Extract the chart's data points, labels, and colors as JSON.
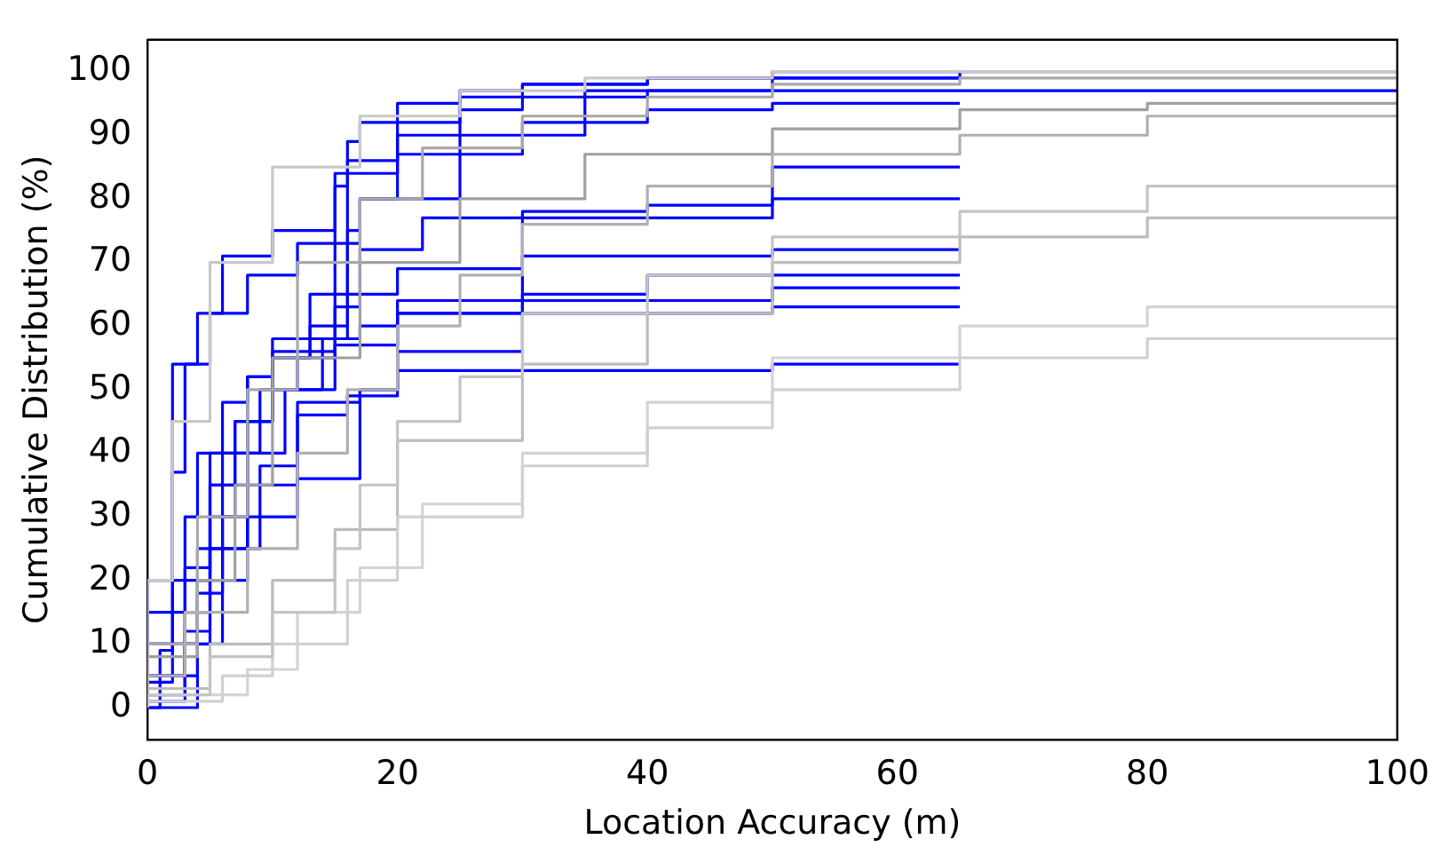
{
  "chart_data": {
    "type": "step",
    "xlabel": "Location Accuracy (m)",
    "ylabel": "Cumulative Distribution (%)",
    "xlim": [
      0,
      100
    ],
    "ylim": [
      -5,
      105
    ],
    "xticks": [
      0,
      20,
      40,
      60,
      80,
      100
    ],
    "yticks": [
      0,
      10,
      20,
      30,
      40,
      50,
      60,
      70,
      80,
      90,
      100
    ],
    "grid": false,
    "legend": false,
    "marker": "none",
    "series": [
      {
        "color": "#c4c4c4",
        "x": [
          0,
          5,
          10,
          15,
          17,
          20,
          25,
          30,
          40,
          50,
          65,
          80,
          100
        ],
        "values": [
          0,
          2,
          8,
          15,
          25,
          35,
          45,
          52,
          62,
          68,
          74,
          78,
          82
        ]
      },
      {
        "color": "#b0b0b0",
        "x": [
          0,
          3,
          8,
          12,
          16,
          20,
          25,
          30,
          40,
          50,
          65,
          80,
          100
        ],
        "values": [
          0,
          5,
          15,
          25,
          40,
          50,
          60,
          68,
          76,
          82,
          87,
          90,
          93
        ]
      },
      {
        "color": "#d0d0d0",
        "x": [
          0,
          6,
          10,
          16,
          20,
          30,
          40,
          50,
          65,
          80,
          100
        ],
        "values": [
          0,
          1,
          5,
          10,
          20,
          30,
          38,
          44,
          50,
          55,
          58
        ]
      },
      {
        "color": "#a8a8a8",
        "x": [
          0,
          4,
          8,
          12,
          17,
          22,
          30,
          40,
          50,
          65,
          80,
          100
        ],
        "values": [
          0,
          10,
          30,
          50,
          70,
          80,
          88,
          93,
          96,
          98,
          99,
          99
        ]
      },
      {
        "color": "#bcbcbc",
        "x": [
          0,
          5,
          10,
          15,
          20,
          30,
          40,
          50,
          65,
          80,
          100
        ],
        "values": [
          0,
          3,
          10,
          20,
          28,
          42,
          54,
          62,
          70,
          74,
          77
        ]
      },
      {
        "color": "#c8c8c8",
        "x": [
          0,
          2,
          5,
          10,
          17,
          25,
          35,
          50,
          65,
          100
        ],
        "values": [
          0,
          20,
          45,
          70,
          85,
          93,
          97,
          99,
          100,
          100
        ]
      },
      {
        "color": "#d4d4d4",
        "x": [
          0,
          8,
          12,
          17,
          22,
          30,
          40,
          50,
          65,
          80,
          100
        ],
        "values": [
          0,
          2,
          6,
          15,
          22,
          32,
          40,
          48,
          55,
          60,
          63
        ]
      },
      {
        "color": "#a0a0a0",
        "x": [
          0,
          4,
          7,
          10,
          17,
          25,
          35,
          50,
          65,
          80,
          100
        ],
        "values": [
          0,
          8,
          20,
          35,
          55,
          70,
          80,
          87,
          91,
          94,
          95
        ]
      },
      {
        "color": "#0000ff",
        "x": [
          0,
          1,
          2,
          3,
          5,
          8,
          12,
          17,
          25,
          35,
          50,
          65,
          100
        ],
        "values": [
          0,
          0,
          9,
          37,
          54,
          62,
          68,
          73,
          80,
          90,
          97,
          99,
          100
        ]
      },
      {
        "color": "#0000ff",
        "x": [
          0,
          3,
          4,
          6,
          8,
          10,
          15,
          17,
          20,
          30,
          50,
          65
        ],
        "values": [
          0,
          1,
          30,
          40,
          48,
          52,
          56,
          63,
          65,
          69,
          71,
          72
        ]
      },
      {
        "color": "#0000ff",
        "x": [
          0,
          4,
          5,
          7,
          10,
          14,
          17,
          20,
          30,
          50,
          65
        ],
        "values": [
          0,
          0,
          20,
          35,
          45,
          50,
          58,
          60,
          62,
          64,
          66
        ]
      },
      {
        "color": "#0000ff",
        "x": [
          0,
          3,
          5,
          8,
          12,
          17,
          20,
          30,
          50,
          65
        ],
        "values": [
          0,
          2,
          12,
          25,
          35,
          48,
          50,
          53,
          53,
          54
        ]
      },
      {
        "color": "#0000ff",
        "x": [
          0,
          5,
          7,
          10,
          13,
          16,
          17,
          20,
          25,
          30,
          40,
          50,
          65
        ],
        "values": [
          0,
          15,
          30,
          45,
          55,
          60,
          89,
          92,
          95,
          97,
          98,
          99,
          100
        ]
      },
      {
        "color": "#0000ff",
        "x": [
          0,
          4,
          6,
          9,
          12,
          15,
          16,
          20,
          25,
          30,
          40,
          50,
          65,
          100
        ],
        "values": [
          0,
          10,
          25,
          40,
          50,
          55,
          82,
          86,
          90,
          94,
          96,
          97,
          97,
          97
        ]
      },
      {
        "color": "#0000ff",
        "x": [
          0,
          4,
          6,
          8,
          11,
          15,
          20,
          30,
          40,
          50,
          65
        ],
        "values": [
          0,
          5,
          18,
          30,
          40,
          50,
          57,
          62,
          65,
          68,
          68
        ]
      },
      {
        "color": "#0000ff",
        "x": [
          0,
          3,
          5,
          8,
          12,
          15,
          17,
          20,
          30,
          50,
          65
        ],
        "values": [
          0,
          3,
          10,
          20,
          30,
          36,
          36,
          50,
          64,
          77,
          85
        ]
      },
      {
        "color": "#0000ff",
        "x": [
          0,
          5,
          8,
          10,
          13,
          17,
          22,
          30,
          40,
          50,
          65
        ],
        "values": [
          0,
          20,
          35,
          45,
          55,
          65,
          72,
          77,
          78,
          79,
          80
        ]
      },
      {
        "color": "#0000ff",
        "x": [
          0,
          3,
          5,
          8,
          10,
          16,
          17,
          20,
          30,
          40,
          50,
          65
        ],
        "values": [
          0,
          5,
          22,
          40,
          52,
          58,
          75,
          80,
          87,
          92,
          94,
          95
        ]
      },
      {
        "color": "#0000ff",
        "x": [
          0,
          6,
          9,
          12,
          16,
          20,
          30,
          50,
          65
        ],
        "values": [
          0,
          10,
          25,
          38,
          46,
          49,
          56,
          62,
          63
        ]
      },
      {
        "color": "#0000ff",
        "x": [
          0,
          2,
          4,
          6,
          10,
          15,
          20,
          25,
          30,
          40,
          50,
          65
        ],
        "values": [
          0,
          4,
          54,
          62,
          71,
          75,
          84,
          92,
          96,
          98,
          99,
          99
        ]
      }
    ]
  }
}
